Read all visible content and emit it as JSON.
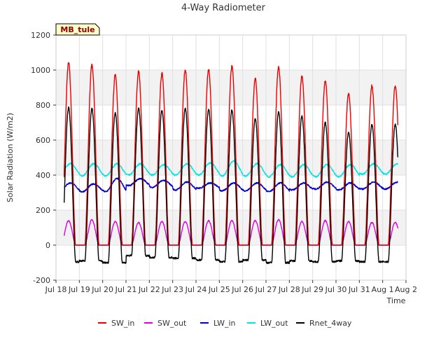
{
  "chart_data": {
    "type": "line",
    "title": "4-Way Radiometer",
    "xlabel": "Time",
    "ylabel": "Solar Radiation (W/m2)",
    "annotation": "MB_tule",
    "x_ticks": [
      {
        "day": 0,
        "label": "Jul 18"
      },
      {
        "day": 1,
        "label": "Jul 19"
      },
      {
        "day": 2,
        "label": "Jul 20"
      },
      {
        "day": 3,
        "label": "Jul 21"
      },
      {
        "day": 4,
        "label": "Jul 22"
      },
      {
        "day": 5,
        "label": "Jul 23"
      },
      {
        "day": 6,
        "label": "Jul 24"
      },
      {
        "day": 7,
        "label": "Jul 25"
      },
      {
        "day": 8,
        "label": "Jul 26"
      },
      {
        "day": 9,
        "label": "Jul 27"
      },
      {
        "day": 10,
        "label": "Jul 28"
      },
      {
        "day": 11,
        "label": "Jul 29"
      },
      {
        "day": 12,
        "label": "Jul 30"
      },
      {
        "day": 13,
        "label": "Jul 31"
      },
      {
        "day": 14,
        "label": "Aug 1"
      },
      {
        "day": 15,
        "label": "Aug 2"
      }
    ],
    "xlim": [
      0,
      15
    ],
    "ylim": [
      -200,
      1200
    ],
    "yticks": [
      -200,
      0,
      200,
      400,
      600,
      800,
      1000,
      1200
    ],
    "grid": true,
    "legend_position": "bottom",
    "data_start_day": 0.35,
    "data_end_day": 14.65,
    "series": [
      {
        "name": "SW_in",
        "color": "#ee0000",
        "night_value": 0,
        "daily_peaks": [
          1040,
          1030,
          975,
          990,
          980,
          1000,
          1005,
          1020,
          950,
          1015,
          965,
          940,
          865,
          910
        ]
      },
      {
        "name": "SW_out",
        "color": "#dd00dd",
        "night_value": 0,
        "daily_peaks": [
          140,
          145,
          135,
          130,
          135,
          135,
          140,
          140,
          140,
          145,
          135,
          140,
          135,
          130
        ]
      },
      {
        "name": "LW_in",
        "color": "#0000cc",
        "daily_min": [
          310,
          305,
          305,
          340,
          330,
          315,
          325,
          310,
          310,
          305,
          315,
          320,
          315,
          320
        ],
        "daily_max": [
          355,
          350,
          380,
          380,
          370,
          360,
          355,
          355,
          355,
          355,
          355,
          360,
          355,
          360
        ]
      },
      {
        "name": "LW_out",
        "color": "#00e5e5",
        "daily_min": [
          400,
          395,
          395,
          400,
          400,
          400,
          400,
          395,
          395,
          390,
          390,
          390,
          390,
          405
        ],
        "daily_max": [
          465,
          465,
          465,
          465,
          460,
          465,
          470,
          480,
          465,
          460,
          460,
          460,
          460,
          465
        ]
      },
      {
        "name": "Rnet_4way",
        "color": "#000000",
        "daily_peaks": [
          785,
          780,
          755,
          780,
          770,
          780,
          775,
          770,
          720,
          760,
          735,
          700,
          645,
          690
        ],
        "night_values": [
          -95,
          -90,
          -100,
          -60,
          -70,
          -75,
          -85,
          -95,
          -85,
          -100,
          -90,
          -95,
          -90,
          -95
        ]
      }
    ]
  }
}
